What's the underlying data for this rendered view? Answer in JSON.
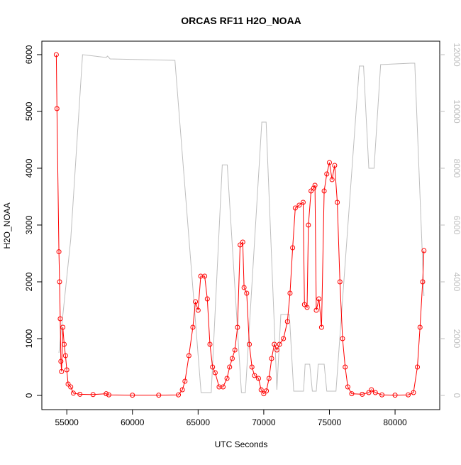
{
  "chart_data": {
    "type": "line",
    "title": "ORCAS RF11 H2O_NOAA",
    "xlabel": "UTC Seconds",
    "ylabel": "H2O_NOAA",
    "xlim": [
      53100,
      83400
    ],
    "ylim": [
      -250,
      6237
    ],
    "y2lim": [
      -500,
      12475
    ],
    "xticks": [
      55000,
      60000,
      65000,
      70000,
      75000,
      80000
    ],
    "yticks": [
      0,
      1000,
      2000,
      3000,
      4000,
      5000,
      6000
    ],
    "y2ticks": [
      0,
      2000,
      4000,
      6000,
      8000,
      10000,
      12000
    ],
    "series": [
      {
        "color": "#ff0000",
        "markers": true,
        "x": [
          54200,
          54250,
          54400,
          54450,
          54500,
          54550,
          54600,
          54700,
          54800,
          54900,
          55000,
          55100,
          55300,
          55500,
          56000,
          57000,
          58000,
          58200,
          60000,
          62000,
          63500,
          63800,
          64000,
          64300,
          64600,
          64800,
          65000,
          65200,
          65500,
          65700,
          65900,
          66100,
          66300,
          66600,
          66900,
          67200,
          67400,
          67600,
          67800,
          68000,
          68200,
          68400,
          68500,
          68700,
          68900,
          69100,
          69300,
          69600,
          69800,
          70000,
          70200,
          70400,
          70600,
          70800,
          71000,
          71200,
          71500,
          71800,
          72000,
          72200,
          72400,
          72700,
          73000,
          73100,
          73300,
          73400,
          73600,
          73800,
          73900,
          74000,
          74200,
          74400,
          74600,
          74800,
          75000,
          75200,
          75400,
          75600,
          75800,
          76000,
          76200,
          76400,
          76700,
          77500,
          78000,
          78200,
          78500,
          79000,
          80000,
          81000,
          81400,
          81700,
          81900,
          82100,
          82200
        ],
        "values": [
          6000,
          5050,
          2530,
          2000,
          1350,
          600,
          420,
          1200,
          900,
          700,
          450,
          200,
          150,
          40,
          20,
          15,
          30,
          10,
          5,
          5,
          10,
          100,
          250,
          700,
          1200,
          1650,
          1500,
          2100,
          2100,
          1700,
          900,
          500,
          400,
          150,
          150,
          300,
          500,
          650,
          800,
          1200,
          2650,
          2700,
          1900,
          1800,
          900,
          500,
          350,
          300,
          100,
          30,
          80,
          300,
          650,
          900,
          800,
          900,
          1000,
          1300,
          1800,
          2600,
          3300,
          3350,
          3400,
          1600,
          1550,
          3000,
          3600,
          3650,
          3700,
          1500,
          1700,
          1200,
          3600,
          3900,
          4100,
          3800,
          4050,
          3400,
          2000,
          1000,
          500,
          150,
          30,
          20,
          50,
          100,
          50,
          10,
          5,
          10,
          50,
          500,
          1200,
          2000,
          2550
        ]
      },
      {
        "color": "#bebebe",
        "axis": "y2",
        "markers": false,
        "x": [
          54400,
          55300,
          56200,
          58000,
          58100,
          58300,
          63235,
          65226,
          66000,
          66840,
          67220,
          68300,
          68600,
          69850,
          70180,
          71000,
          71300,
          71950,
          72280,
          73030,
          73150,
          73500,
          73700,
          74000,
          74150,
          74600,
          74800,
          75500,
          77280,
          77600,
          78000,
          78400,
          78900,
          81200,
          81500,
          82200
        ],
        "values": [
          1500,
          5500,
          12000,
          11900,
          11950,
          11850,
          11800,
          100,
          100,
          8120,
          8120,
          100,
          100,
          9625,
          9625,
          200,
          2850,
          2850,
          150,
          150,
          1100,
          1100,
          150,
          150,
          1100,
          1100,
          150,
          150,
          11600,
          11600,
          8000,
          8000,
          11650,
          11700,
          11700,
          3500
        ]
      }
    ]
  }
}
